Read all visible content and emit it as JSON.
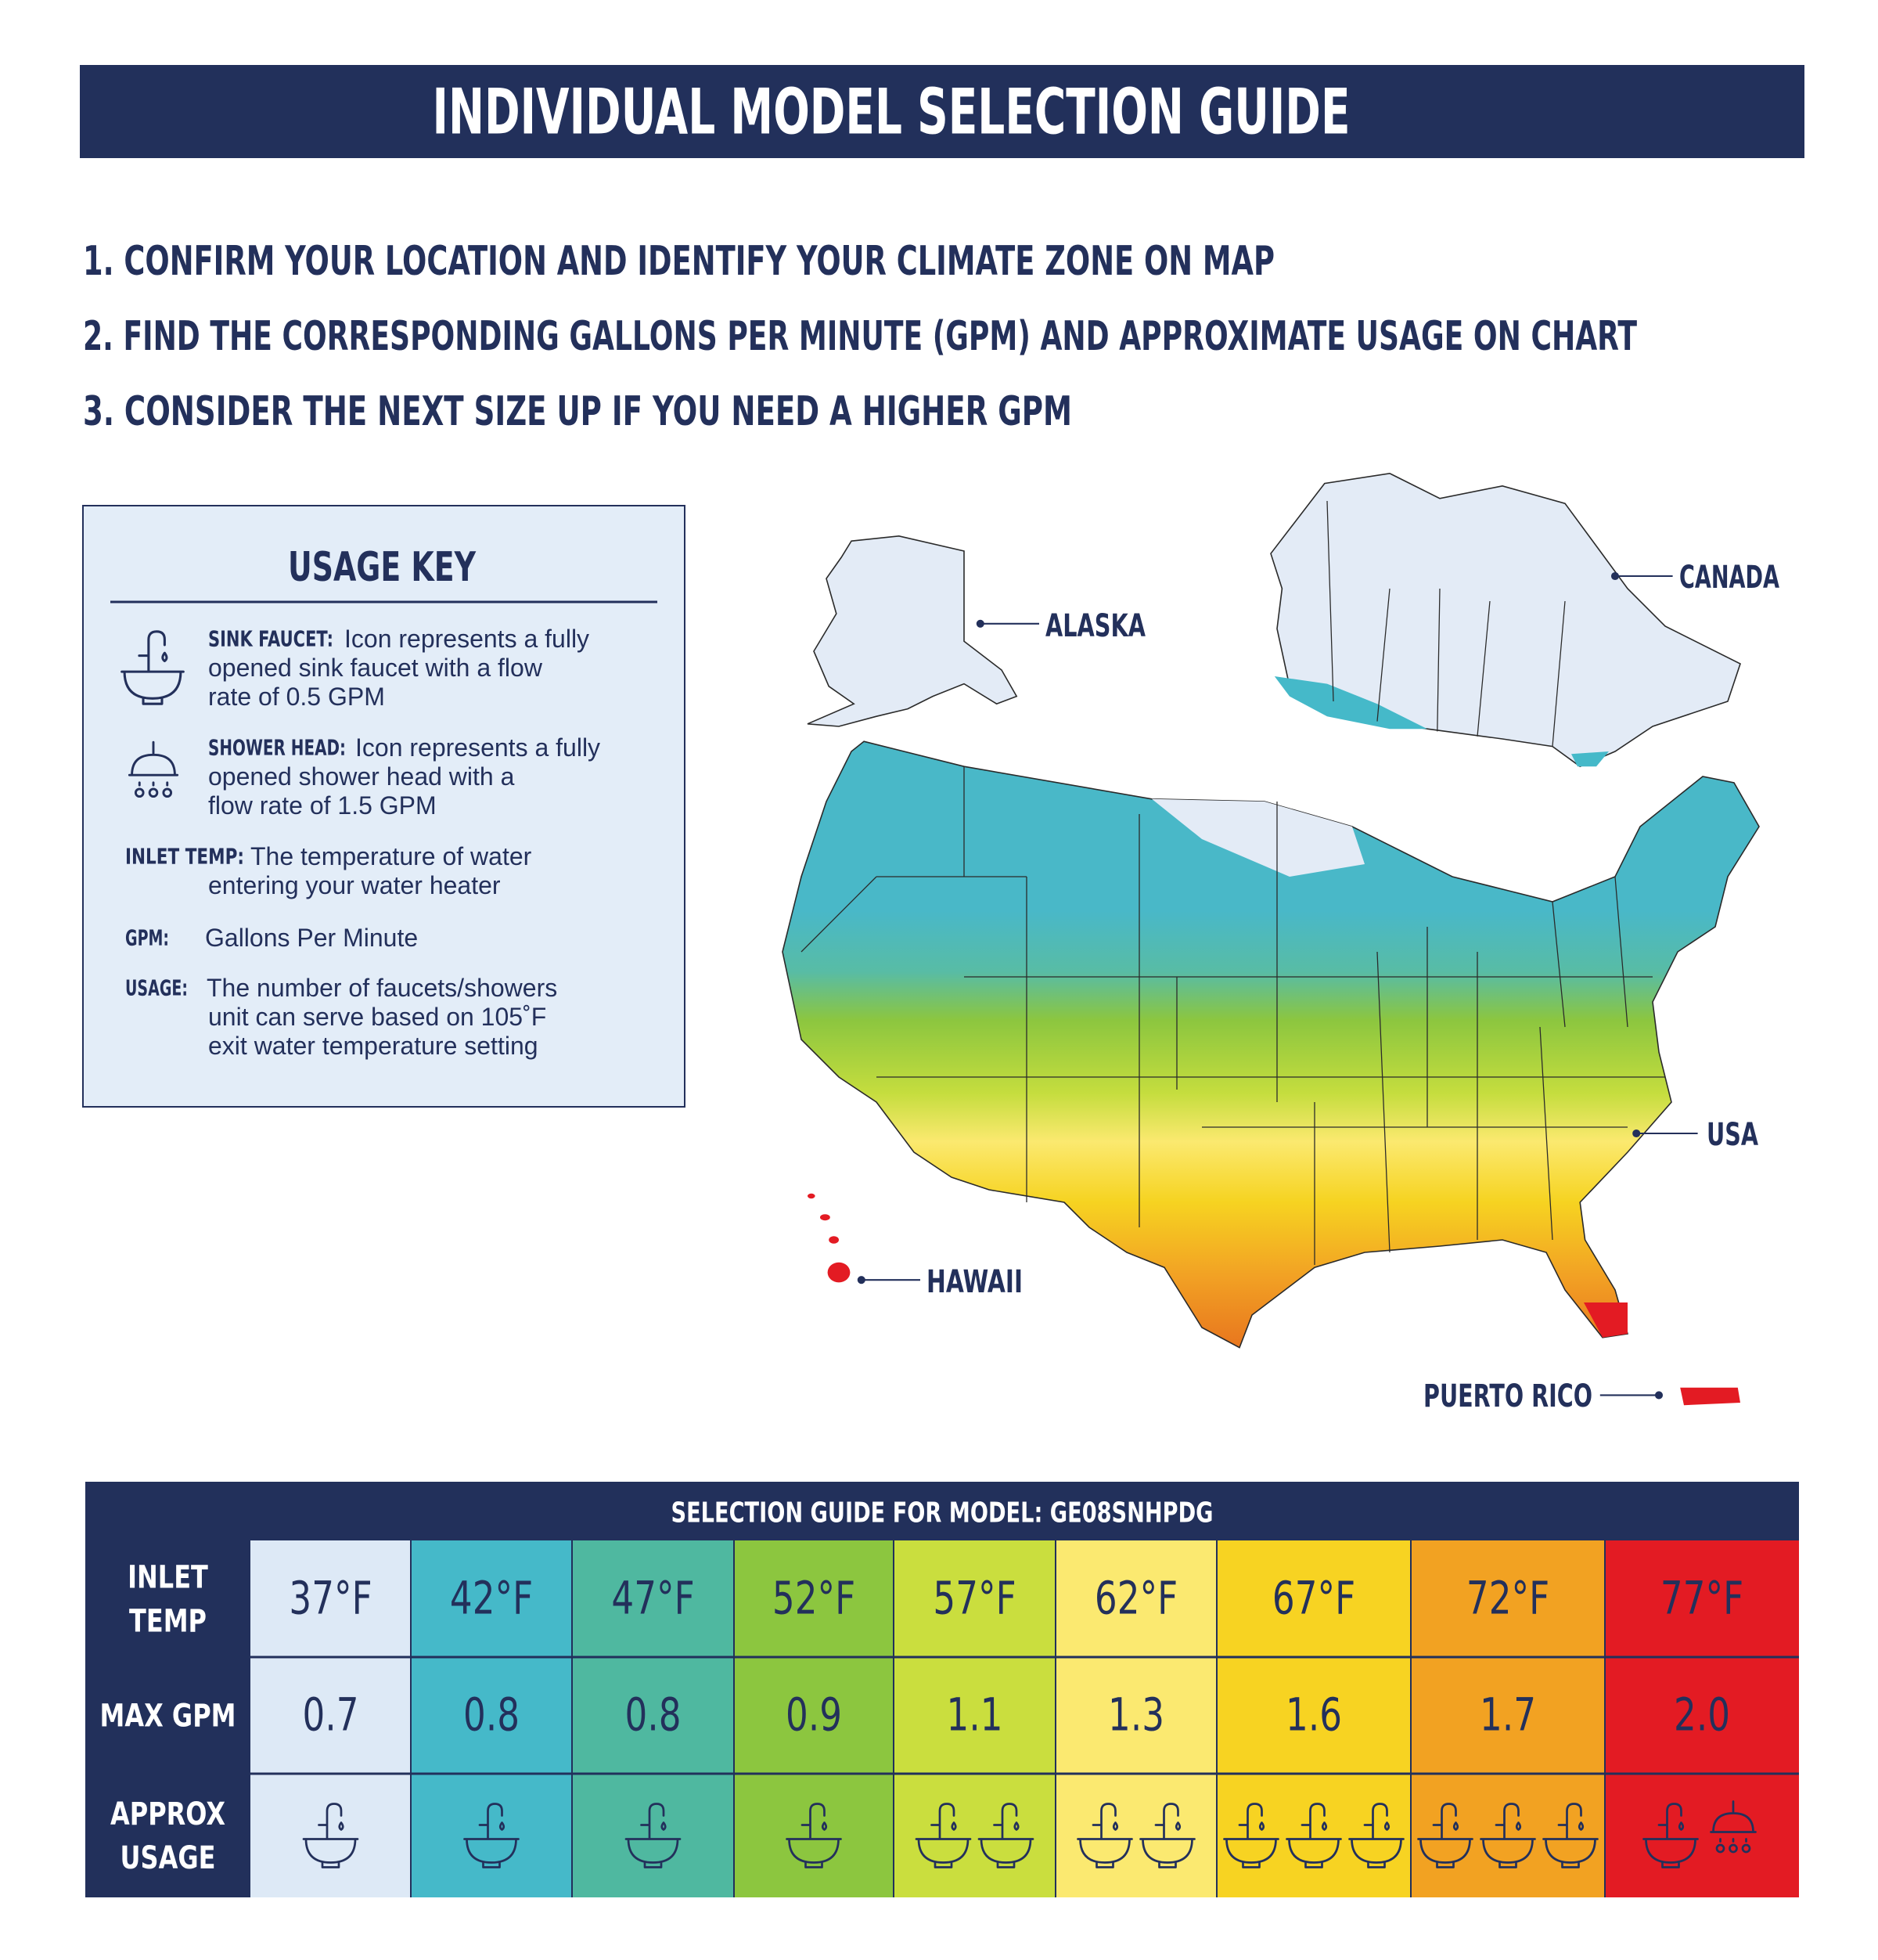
{
  "header": {
    "title": "INDIVIDUAL MODEL SELECTION GUIDE"
  },
  "steps": [
    "1. CONFIRM YOUR LOCATION AND IDENTIFY YOUR CLIMATE ZONE ON MAP",
    "2. FIND THE CORRESPONDING GALLONS PER MINUTE (GPM) AND APPROXIMATE USAGE ON CHART",
    "3. CONSIDER THE NEXT SIZE UP IF YOU NEED A HIGHER GPM"
  ],
  "usage_key": {
    "title": "USAGE KEY",
    "items": [
      {
        "term": "SINK FAUCET:",
        "lines": [
          "Icon represents a fully",
          "opened sink faucet with a flow",
          "rate of 0.5 GPM"
        ]
      },
      {
        "term": "SHOWER HEAD:",
        "lines": [
          "Icon represents a fully",
          "opened shower head with a",
          "flow rate of 1.5 GPM"
        ]
      },
      {
        "term": "INLET TEMP:",
        "lines": [
          "The temperature of water",
          "entering your water heater"
        ]
      },
      {
        "term": "GPM:",
        "lines": [
          "Gallons Per Minute"
        ]
      },
      {
        "term": "USAGE:",
        "lines": [
          "The number of faucets/showers",
          "unit can serve based on 105˚F",
          "exit water temperature setting"
        ]
      }
    ]
  },
  "map": {
    "labels": [
      "ALASKA",
      "CANADA",
      "USA",
      "HAWAII",
      "PUERTO RICO"
    ]
  },
  "table": {
    "title": "SELECTION GUIDE FOR MODEL: GE08SNHPDG",
    "row_labels": [
      [
        "INLET",
        "TEMP"
      ],
      [
        "MAX GPM"
      ],
      [
        "APPROX",
        "USAGE"
      ]
    ],
    "inlet_temps": [
      "37°F",
      "42°F",
      "47°F",
      "52°F",
      "57°F",
      "62°F",
      "67°F",
      "72°F",
      "77°F"
    ],
    "max_gpm": [
      "0.7",
      "0.8",
      "0.8",
      "0.9",
      "1.1",
      "1.3",
      "1.6",
      "1.7",
      "2.0"
    ],
    "usage": [
      {
        "faucets": 1,
        "showers": 0
      },
      {
        "faucets": 1,
        "showers": 0
      },
      {
        "faucets": 1,
        "showers": 0
      },
      {
        "faucets": 1,
        "showers": 0
      },
      {
        "faucets": 2,
        "showers": 0
      },
      {
        "faucets": 2,
        "showers": 0
      },
      {
        "faucets": 3,
        "showers": 0
      },
      {
        "faucets": 3,
        "showers": 0
      },
      {
        "faucets": 1,
        "showers": 1
      }
    ],
    "colors": [
      "#dde9f6",
      "#45b9c9",
      "#4fb8a0",
      "#8cc63f",
      "#cade3e",
      "#fbe970",
      "#f7d322",
      "#f2a222",
      "#e31b23"
    ]
  }
}
